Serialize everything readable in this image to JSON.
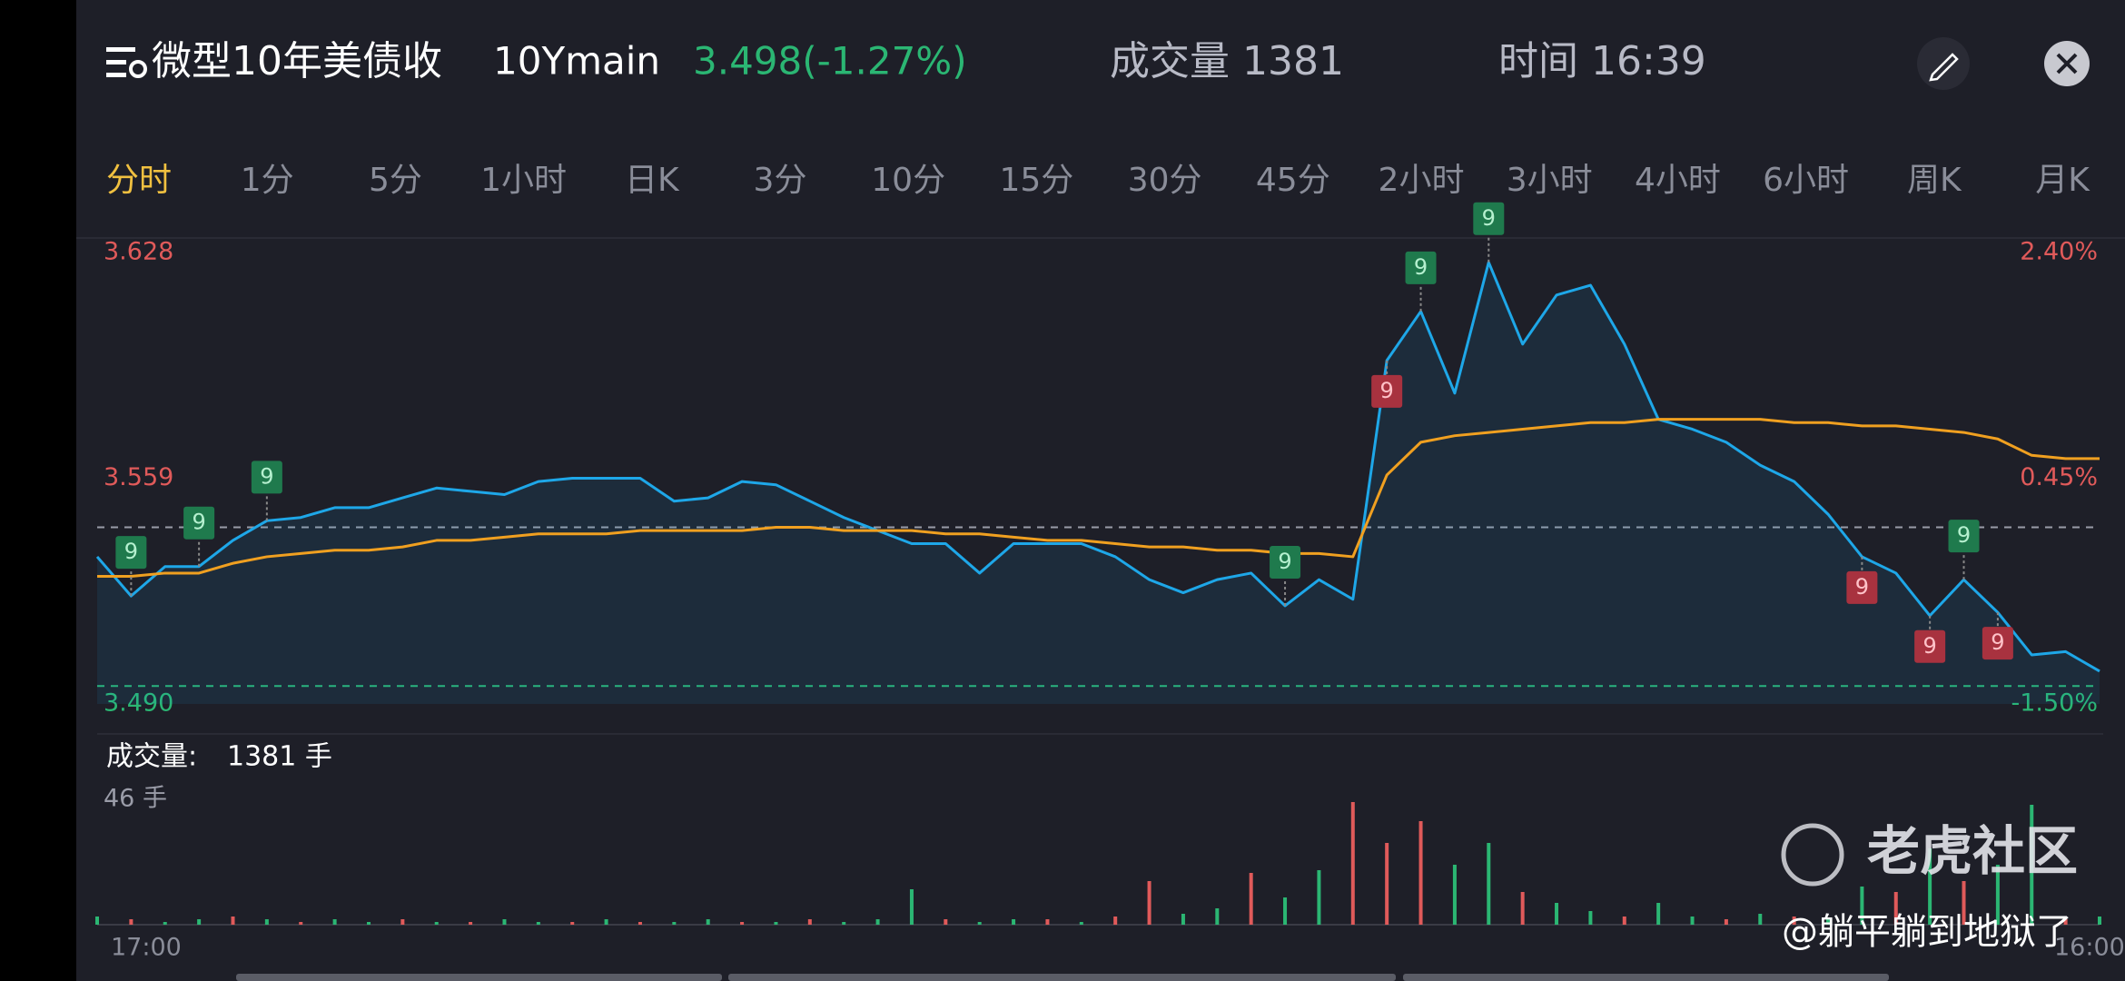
{
  "header": {
    "title": "微型10年美债收",
    "symbol": "10Ymain",
    "quote": "3.498(-1.27%)",
    "volume": "成交量 1381",
    "time": "时间 16:39"
  },
  "tabs": [
    "分时",
    "1分",
    "5分",
    "1小时",
    "日K",
    "3分",
    "10分",
    "15分",
    "30分",
    "45分",
    "2小时",
    "3小时",
    "4小时",
    "6小时",
    "周K",
    "月K"
  ],
  "active_tab": 0,
  "watermark": {
    "brand": "老虎社区",
    "author": "@躺平躺到地狱了"
  },
  "chart_data": [
    {
      "type": "line",
      "categories": [
        "17:00",
        null,
        null,
        null,
        null,
        null,
        null,
        null,
        null,
        null,
        null,
        null,
        null,
        null,
        null,
        null,
        null,
        null,
        null,
        null,
        null,
        null,
        null,
        null,
        null,
        null,
        null,
        null,
        null,
        null,
        null,
        null,
        null,
        null,
        null,
        null,
        null,
        null,
        null,
        null,
        null,
        null,
        null,
        null,
        null,
        null,
        null,
        null,
        null,
        null,
        null,
        null,
        null,
        null,
        null,
        null,
        null,
        null,
        null,
        "16:00"
      ],
      "series": [
        {
          "color": "#1ea7e8",
          "values": [
            3.535,
            3.523,
            3.532,
            3.532,
            3.54,
            3.546,
            3.547,
            3.55,
            3.55,
            3.553,
            3.556,
            3.555,
            3.554,
            3.558,
            3.559,
            3.559,
            3.559,
            3.552,
            3.553,
            3.558,
            3.557,
            3.552,
            3.547,
            3.543,
            3.539,
            3.539,
            3.53,
            3.539,
            3.539,
            3.539,
            3.535,
            3.528,
            3.524,
            3.528,
            3.53,
            3.52,
            3.528,
            3.522,
            3.595,
            3.61,
            3.585,
            3.625,
            3.6,
            3.615,
            3.618,
            3.6,
            3.577,
            3.574,
            3.57,
            3.563,
            3.558,
            3.548,
            3.535,
            3.53,
            3.517,
            3.528,
            3.518,
            3.505,
            3.506,
            3.5
          ]
        },
        {
          "color": "#f0a020",
          "values": [
            3.529,
            3.529,
            3.53,
            3.53,
            3.533,
            3.535,
            3.536,
            3.537,
            3.537,
            3.538,
            3.54,
            3.54,
            3.541,
            3.542,
            3.542,
            3.542,
            3.543,
            3.543,
            3.543,
            3.543,
            3.544,
            3.544,
            3.543,
            3.543,
            3.543,
            3.542,
            3.542,
            3.541,
            3.54,
            3.54,
            3.539,
            3.538,
            3.538,
            3.537,
            3.537,
            3.536,
            3.536,
            3.535,
            3.56,
            3.57,
            3.572,
            3.573,
            3.574,
            3.575,
            3.576,
            3.576,
            3.577,
            3.577,
            3.577,
            3.577,
            3.576,
            3.576,
            3.575,
            3.575,
            3.574,
            3.573,
            3.571,
            3.566,
            3.565,
            3.565
          ]
        }
      ],
      "ylim": [
        3.49,
        3.628
      ],
      "yticks": [
        3.628,
        3.559,
        {
          "value": 3.49,
          "label": "3.490"
        }
      ],
      "y2lim": [
        -1.5,
        2.4
      ],
      "y2ticks": [
        {
          "value": 2.4,
          "label": "2.40%"
        },
        {
          "value": 0.45,
          "label": "0.45%"
        },
        {
          "value": -1.5,
          "label": "-1.50%"
        }
      ],
      "reference_lines": [
        3.544,
        3.4955
      ],
      "annotations": [
        {
          "x": 1,
          "text": "9",
          "color": "#1f7a4d"
        },
        {
          "x": 3,
          "text": "9",
          "color": "#1f7a4d"
        },
        {
          "x": 5,
          "text": "9",
          "color": "#1f7a4d"
        },
        {
          "x": 35,
          "text": "9",
          "color": "#1f7a4d"
        },
        {
          "x": 39,
          "text": "9",
          "color": "#1f7a4d"
        },
        {
          "x": 41,
          "text": "9",
          "color": "#1f7a4d"
        },
        {
          "x": 55,
          "text": "9",
          "color": "#1f7a4d"
        },
        {
          "x": 38,
          "text": "9",
          "color": "#a8323f"
        },
        {
          "x": 52,
          "text": "9",
          "color": "#a8323f"
        },
        {
          "x": 54,
          "text": "9",
          "color": "#a8323f"
        },
        {
          "x": 56,
          "text": "9",
          "color": "#a8323f"
        }
      ]
    },
    {
      "type": "bar",
      "title": "成交量:",
      "subtitle": "1381 手",
      "values": [
        3,
        2,
        1,
        2,
        3,
        2,
        1,
        2,
        1,
        2,
        1,
        1,
        2,
        1,
        1,
        2,
        1,
        1,
        2,
        1,
        1,
        2,
        1,
        2,
        13,
        2,
        1,
        2,
        2,
        1,
        3,
        16,
        4,
        6,
        19,
        10,
        20,
        45,
        30,
        38,
        22,
        30,
        12,
        8,
        5,
        3,
        8,
        3,
        2,
        4,
        3,
        2,
        14,
        12,
        28,
        16,
        22,
        44,
        2,
        3
      ],
      "colors": [
        "#2bb673",
        "#e05a5a",
        "#2bb673",
        "#2bb673",
        "#e05a5a",
        "#2bb673",
        "#e05a5a",
        "#2bb673",
        "#2bb673",
        "#e05a5a",
        "#2bb673",
        "#e05a5a",
        "#2bb673",
        "#2bb673",
        "#e05a5a",
        "#2bb673",
        "#e05a5a",
        "#2bb673",
        "#2bb673",
        "#e05a5a",
        "#2bb673",
        "#e05a5a",
        "#2bb673",
        "#2bb673",
        "#2bb673",
        "#e05a5a",
        "#2bb673",
        "#2bb673",
        "#e05a5a",
        "#2bb673",
        "#e05a5a",
        "#e05a5a",
        "#2bb673",
        "#2bb673",
        "#e05a5a",
        "#2bb673",
        "#2bb673",
        "#e05a5a",
        "#e05a5a",
        "#e05a5a",
        "#2bb673",
        "#2bb673",
        "#e05a5a",
        "#2bb673",
        "#2bb673",
        "#e05a5a",
        "#2bb673",
        "#2bb673",
        "#e05a5a",
        "#2bb673",
        "#e05a5a",
        "#2bb673",
        "#2bb673",
        "#e05a5a",
        "#2bb673",
        "#e05a5a",
        "#2bb673",
        "#2bb673",
        "#e05a5a",
        "#2bb673"
      ],
      "ylim": [
        0,
        46
      ],
      "yticks": [
        {
          "value": 46,
          "label": "46 手"
        }
      ]
    }
  ]
}
